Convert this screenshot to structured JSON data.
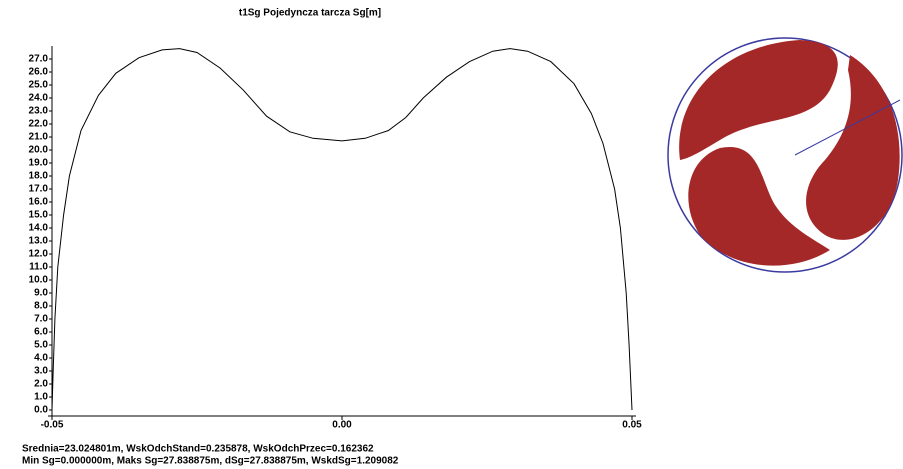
{
  "chart_data": {
    "type": "line",
    "title": "t1Sg  Pojedyncza tarcza   Sg[m]",
    "x": [
      -0.05,
      -0.0498,
      -0.0495,
      -0.049,
      -0.048,
      -0.047,
      -0.045,
      -0.042,
      -0.039,
      -0.035,
      -0.031,
      -0.028,
      -0.025,
      -0.021,
      -0.017,
      -0.013,
      -0.009,
      -0.005,
      0,
      0.004,
      0.008,
      0.011,
      0.014,
      0.018,
      0.022,
      0.026,
      0.029,
      0.032,
      0.036,
      0.04,
      0.043,
      0.045,
      0.047,
      0.048,
      0.049,
      0.0495,
      0.05
    ],
    "series": [
      {
        "color": "#000000",
        "values": [
          0,
          3,
          7,
          11,
          15,
          18,
          21.5,
          24.2,
          25.9,
          27.1,
          27.7,
          27.8,
          27.5,
          26.3,
          24.6,
          22.6,
          21.4,
          20.9,
          20.7,
          20.9,
          21.5,
          22.5,
          24.0,
          25.6,
          26.8,
          27.6,
          27.8,
          27.6,
          26.8,
          25.1,
          22.8,
          20.5,
          17,
          14,
          9,
          5,
          0
        ]
      }
    ],
    "xlim": [
      -0.05,
      0.05
    ],
    "xticks": [
      -0.05,
      {
        "value": 0,
        "label": "0.00"
      },
      0.05
    ],
    "ylim": [
      0,
      28
    ],
    "yticks": [
      {
        "value": 0,
        "label": "0.0"
      },
      {
        "value": 1,
        "label": "1.0"
      },
      {
        "value": 2,
        "label": "2.0"
      },
      {
        "value": 3,
        "label": "3.0"
      },
      {
        "value": 4,
        "label": "4.0"
      },
      {
        "value": 5,
        "label": "5.0"
      },
      {
        "value": 6,
        "label": "6.0"
      },
      {
        "value": 7,
        "label": "7.0"
      },
      {
        "value": 8,
        "label": "8.0"
      },
      {
        "value": 9,
        "label": "9.0"
      },
      {
        "value": 10,
        "label": "10.0"
      },
      {
        "value": 11,
        "label": "11.0"
      },
      {
        "value": 12,
        "label": "12.0"
      },
      {
        "value": 13,
        "label": "13.0"
      },
      {
        "value": 14,
        "label": "14.0"
      },
      {
        "value": 15,
        "label": "15.0"
      },
      {
        "value": 16,
        "label": "16.0"
      },
      {
        "value": 17,
        "label": "17.0"
      },
      {
        "value": 18,
        "label": "18.0"
      },
      {
        "value": 19,
        "label": "19.0"
      },
      {
        "value": 20,
        "label": "20.0"
      },
      {
        "value": 21,
        "label": "21.0"
      },
      {
        "value": 22,
        "label": "22.0"
      },
      {
        "value": 23,
        "label": "23.0"
      },
      {
        "value": 24,
        "label": "24.0"
      },
      {
        "value": 25,
        "label": "25.0"
      },
      {
        "value": 26,
        "label": "26.0"
      },
      {
        "value": 27,
        "label": "27.0"
      }
    ],
    "grid": false,
    "annotations": [
      "Srednia=23.024801m,  WskOdchStand=0.235878,  WskOdchPrzec=0.162362",
      "Min Sg=0.000000m,  Maks Sg=27.838875m,  dSg=27.838875m, WskdSg=1.209082"
    ]
  }
}
